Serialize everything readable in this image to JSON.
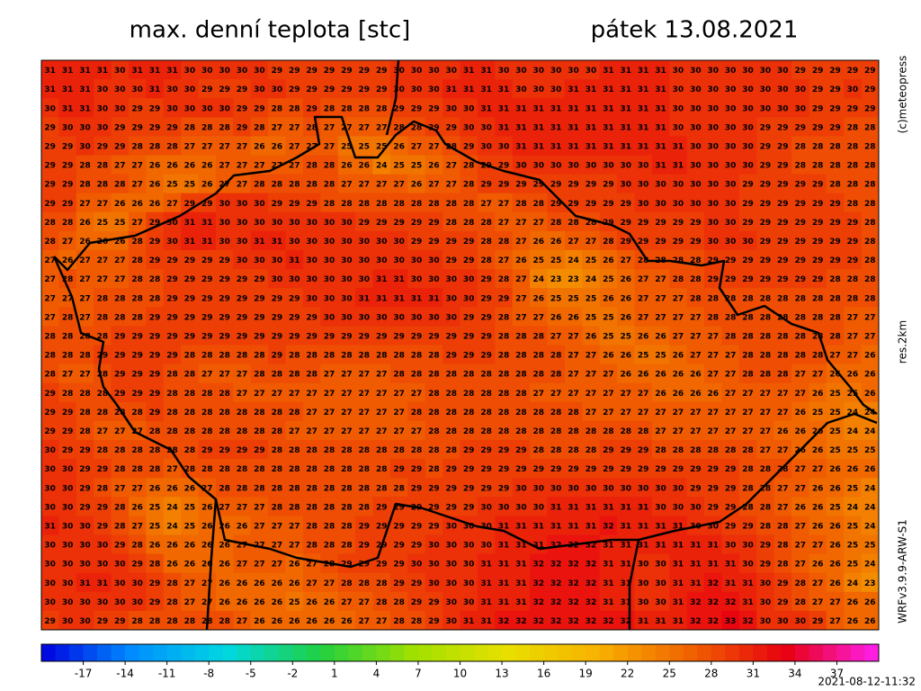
{
  "header": {
    "title": "max. denní teplota [stc]",
    "date": "pátek 13.08.2021"
  },
  "side_labels": [
    "(c)meteopress",
    "res.2km",
    "WRFv3.9.9-ARW-S1"
  ],
  "timestamp": "2021-08-12-11:32",
  "grid": {
    "rows": [
      [
        31,
        31,
        31,
        31,
        30,
        31,
        31,
        31,
        30,
        30,
        30,
        30,
        30,
        29,
        29,
        29,
        29,
        29,
        29,
        29,
        30,
        30,
        30,
        30,
        31,
        31,
        30,
        30,
        30,
        30,
        30,
        30,
        31,
        31,
        31,
        31,
        30,
        30,
        30,
        30,
        30,
        30,
        30,
        29,
        29,
        29,
        29,
        29
      ],
      [
        31,
        31,
        31,
        30,
        30,
        30,
        31,
        30,
        30,
        29,
        29,
        29,
        30,
        30,
        29,
        29,
        29,
        29,
        29,
        29,
        30,
        30,
        30,
        31,
        31,
        31,
        31,
        30,
        30,
        30,
        31,
        31,
        31,
        31,
        31,
        31,
        30,
        30,
        30,
        30,
        30,
        30,
        30,
        30,
        29,
        29,
        30,
        29
      ],
      [
        30,
        31,
        31,
        30,
        30,
        29,
        29,
        30,
        30,
        30,
        30,
        29,
        29,
        28,
        28,
        29,
        28,
        28,
        28,
        28,
        29,
        29,
        29,
        30,
        30,
        31,
        31,
        31,
        31,
        31,
        31,
        31,
        31,
        31,
        31,
        31,
        30,
        30,
        30,
        30,
        30,
        30,
        30,
        30,
        29,
        29,
        29,
        29
      ],
      [
        29,
        30,
        30,
        30,
        29,
        29,
        29,
        29,
        28,
        28,
        28,
        29,
        28,
        27,
        27,
        28,
        27,
        27,
        27,
        27,
        28,
        28,
        29,
        29,
        30,
        30,
        31,
        31,
        31,
        31,
        31,
        31,
        31,
        31,
        31,
        31,
        30,
        30,
        30,
        30,
        30,
        29,
        29,
        29,
        29,
        29,
        28,
        28
      ],
      [
        29,
        29,
        30,
        29,
        29,
        28,
        28,
        28,
        27,
        27,
        27,
        27,
        26,
        26,
        27,
        27,
        27,
        25,
        25,
        25,
        26,
        27,
        27,
        28,
        29,
        30,
        30,
        31,
        31,
        31,
        31,
        31,
        31,
        31,
        31,
        31,
        31,
        30,
        30,
        30,
        30,
        29,
        29,
        28,
        28,
        28,
        28,
        28
      ],
      [
        29,
        29,
        28,
        28,
        27,
        27,
        26,
        26,
        26,
        26,
        27,
        27,
        27,
        27,
        27,
        28,
        28,
        26,
        26,
        24,
        25,
        25,
        26,
        27,
        28,
        29,
        29,
        30,
        30,
        30,
        30,
        30,
        30,
        30,
        30,
        31,
        31,
        30,
        30,
        30,
        30,
        29,
        29,
        28,
        28,
        28,
        28,
        28
      ],
      [
        29,
        29,
        28,
        28,
        28,
        27,
        26,
        25,
        25,
        26,
        27,
        27,
        28,
        28,
        28,
        28,
        28,
        27,
        27,
        27,
        27,
        26,
        27,
        27,
        28,
        29,
        29,
        29,
        29,
        29,
        29,
        29,
        29,
        30,
        30,
        30,
        30,
        30,
        30,
        30,
        29,
        29,
        29,
        29,
        29,
        28,
        28,
        28
      ],
      [
        29,
        29,
        27,
        27,
        26,
        26,
        26,
        27,
        29,
        29,
        30,
        30,
        30,
        29,
        29,
        29,
        28,
        28,
        28,
        28,
        28,
        28,
        28,
        28,
        28,
        27,
        27,
        28,
        28,
        29,
        29,
        29,
        29,
        29,
        30,
        30,
        30,
        30,
        30,
        30,
        29,
        29,
        29,
        29,
        29,
        29,
        28,
        28
      ],
      [
        28,
        28,
        26,
        25,
        25,
        27,
        29,
        30,
        31,
        31,
        30,
        30,
        30,
        30,
        30,
        30,
        30,
        30,
        29,
        29,
        29,
        29,
        29,
        28,
        28,
        28,
        27,
        27,
        27,
        28,
        28,
        28,
        29,
        29,
        29,
        29,
        29,
        29,
        30,
        30,
        29,
        29,
        29,
        29,
        29,
        29,
        29,
        28
      ],
      [
        28,
        27,
        26,
        26,
        26,
        28,
        29,
        30,
        31,
        31,
        30,
        30,
        31,
        31,
        30,
        30,
        30,
        30,
        30,
        30,
        30,
        29,
        29,
        29,
        29,
        28,
        28,
        27,
        26,
        26,
        27,
        27,
        28,
        29,
        29,
        29,
        29,
        29,
        30,
        30,
        30,
        29,
        29,
        29,
        29,
        29,
        29,
        28
      ],
      [
        27,
        26,
        27,
        27,
        27,
        28,
        29,
        29,
        29,
        29,
        29,
        30,
        30,
        30,
        31,
        30,
        30,
        30,
        30,
        30,
        30,
        30,
        30,
        29,
        29,
        28,
        27,
        26,
        25,
        25,
        24,
        25,
        26,
        27,
        28,
        28,
        28,
        28,
        29,
        29,
        29,
        29,
        29,
        29,
        29,
        29,
        29,
        28
      ],
      [
        27,
        28,
        27,
        27,
        27,
        28,
        28,
        29,
        29,
        29,
        29,
        29,
        29,
        30,
        30,
        30,
        30,
        30,
        30,
        31,
        31,
        30,
        30,
        30,
        30,
        29,
        28,
        27,
        24,
        23,
        23,
        24,
        25,
        26,
        27,
        27,
        28,
        28,
        29,
        29,
        29,
        29,
        29,
        29,
        29,
        28,
        28,
        28
      ],
      [
        27,
        27,
        27,
        28,
        28,
        28,
        28,
        29,
        29,
        29,
        29,
        29,
        29,
        29,
        29,
        30,
        30,
        30,
        31,
        31,
        31,
        31,
        31,
        30,
        30,
        29,
        29,
        27,
        26,
        25,
        25,
        25,
        26,
        26,
        27,
        27,
        27,
        28,
        28,
        28,
        28,
        28,
        28,
        28,
        28,
        28,
        28,
        28
      ],
      [
        27,
        28,
        27,
        28,
        28,
        28,
        29,
        29,
        29,
        29,
        29,
        29,
        29,
        29,
        29,
        29,
        30,
        30,
        30,
        30,
        30,
        30,
        30,
        30,
        29,
        29,
        28,
        27,
        27,
        26,
        26,
        25,
        25,
        26,
        27,
        27,
        27,
        27,
        28,
        28,
        28,
        28,
        28,
        28,
        28,
        28,
        27,
        27
      ],
      [
        28,
        28,
        28,
        28,
        29,
        29,
        29,
        29,
        29,
        29,
        29,
        29,
        29,
        29,
        29,
        29,
        29,
        29,
        29,
        29,
        29,
        29,
        29,
        29,
        29,
        29,
        28,
        28,
        28,
        27,
        27,
        26,
        25,
        25,
        26,
        26,
        27,
        27,
        27,
        28,
        28,
        28,
        28,
        28,
        28,
        28,
        27,
        27
      ],
      [
        28,
        28,
        28,
        29,
        29,
        29,
        29,
        29,
        28,
        28,
        28,
        28,
        28,
        29,
        28,
        28,
        28,
        28,
        28,
        28,
        28,
        28,
        28,
        29,
        29,
        29,
        28,
        28,
        28,
        28,
        27,
        27,
        26,
        26,
        25,
        25,
        26,
        27,
        27,
        27,
        28,
        28,
        28,
        28,
        28,
        27,
        27,
        26
      ],
      [
        28,
        27,
        27,
        28,
        29,
        29,
        29,
        28,
        28,
        27,
        27,
        27,
        28,
        28,
        28,
        28,
        27,
        27,
        27,
        27,
        28,
        28,
        28,
        28,
        28,
        28,
        28,
        28,
        28,
        28,
        27,
        27,
        27,
        26,
        26,
        26,
        26,
        26,
        27,
        27,
        28,
        28,
        28,
        27,
        27,
        26,
        26,
        26
      ],
      [
        29,
        28,
        28,
        28,
        29,
        29,
        29,
        28,
        28,
        28,
        28,
        27,
        27,
        27,
        27,
        27,
        27,
        27,
        27,
        27,
        27,
        27,
        28,
        28,
        28,
        28,
        28,
        28,
        27,
        27,
        27,
        27,
        27,
        27,
        27,
        26,
        26,
        26,
        26,
        27,
        27,
        27,
        27,
        27,
        26,
        25,
        25,
        26
      ],
      [
        29,
        29,
        28,
        28,
        28,
        28,
        29,
        28,
        28,
        28,
        28,
        28,
        28,
        28,
        28,
        27,
        27,
        27,
        27,
        27,
        27,
        28,
        28,
        28,
        28,
        28,
        28,
        28,
        28,
        28,
        28,
        27,
        27,
        27,
        27,
        27,
        27,
        27,
        27,
        27,
        27,
        27,
        27,
        26,
        25,
        25,
        24,
        24
      ],
      [
        29,
        29,
        28,
        27,
        27,
        27,
        28,
        28,
        28,
        28,
        28,
        28,
        28,
        28,
        27,
        27,
        27,
        27,
        27,
        27,
        27,
        27,
        28,
        28,
        28,
        28,
        28,
        28,
        28,
        28,
        28,
        28,
        28,
        28,
        28,
        27,
        27,
        27,
        27,
        27,
        27,
        27,
        26,
        26,
        26,
        25,
        24,
        24
      ],
      [
        30,
        29,
        29,
        28,
        28,
        28,
        28,
        28,
        28,
        29,
        29,
        29,
        29,
        28,
        28,
        28,
        28,
        28,
        28,
        28,
        28,
        28,
        28,
        28,
        29,
        29,
        29,
        29,
        28,
        28,
        28,
        28,
        29,
        29,
        29,
        28,
        28,
        28,
        28,
        28,
        28,
        27,
        27,
        26,
        26,
        25,
        25,
        25
      ],
      [
        30,
        30,
        29,
        29,
        28,
        28,
        28,
        27,
        28,
        28,
        28,
        28,
        28,
        28,
        28,
        28,
        28,
        28,
        28,
        28,
        29,
        29,
        28,
        29,
        29,
        29,
        29,
        29,
        29,
        29,
        29,
        29,
        29,
        29,
        29,
        29,
        29,
        29,
        29,
        29,
        28,
        28,
        28,
        27,
        27,
        26,
        26,
        26
      ],
      [
        30,
        30,
        29,
        28,
        27,
        27,
        26,
        26,
        26,
        27,
        28,
        28,
        28,
        28,
        28,
        28,
        28,
        28,
        28,
        28,
        28,
        29,
        29,
        29,
        29,
        29,
        29,
        30,
        30,
        30,
        30,
        30,
        30,
        30,
        30,
        30,
        30,
        29,
        29,
        29,
        28,
        28,
        27,
        27,
        26,
        26,
        25,
        24
      ],
      [
        30,
        30,
        29,
        29,
        28,
        26,
        25,
        24,
        25,
        26,
        27,
        27,
        27,
        28,
        28,
        28,
        28,
        28,
        28,
        29,
        29,
        29,
        29,
        29,
        29,
        30,
        30,
        30,
        30,
        31,
        31,
        31,
        31,
        31,
        31,
        30,
        30,
        30,
        29,
        29,
        28,
        28,
        27,
        26,
        26,
        25,
        24,
        24
      ],
      [
        31,
        30,
        30,
        29,
        28,
        27,
        25,
        24,
        25,
        26,
        26,
        26,
        27,
        27,
        27,
        28,
        28,
        28,
        29,
        29,
        29,
        29,
        29,
        30,
        30,
        30,
        31,
        31,
        31,
        31,
        31,
        31,
        32,
        31,
        31,
        31,
        31,
        30,
        30,
        29,
        29,
        28,
        28,
        27,
        26,
        26,
        25,
        24
      ],
      [
        30,
        30,
        30,
        30,
        29,
        28,
        26,
        26,
        26,
        26,
        26,
        27,
        27,
        27,
        27,
        28,
        28,
        28,
        29,
        29,
        29,
        29,
        30,
        30,
        30,
        30,
        31,
        31,
        31,
        32,
        32,
        32,
        31,
        31,
        31,
        31,
        31,
        31,
        31,
        30,
        30,
        29,
        28,
        27,
        27,
        26,
        25,
        25
      ],
      [
        30,
        30,
        30,
        30,
        30,
        29,
        28,
        26,
        26,
        26,
        26,
        27,
        27,
        27,
        26,
        27,
        28,
        29,
        29,
        29,
        29,
        30,
        30,
        30,
        30,
        31,
        31,
        31,
        32,
        32,
        32,
        32,
        31,
        31,
        30,
        30,
        31,
        31,
        31,
        31,
        30,
        29,
        28,
        27,
        26,
        26,
        25,
        24
      ],
      [
        30,
        30,
        31,
        31,
        30,
        30,
        29,
        28,
        27,
        27,
        26,
        26,
        26,
        26,
        26,
        27,
        27,
        28,
        28,
        28,
        29,
        29,
        30,
        30,
        30,
        31,
        31,
        31,
        32,
        32,
        32,
        32,
        31,
        31,
        30,
        30,
        31,
        31,
        32,
        31,
        31,
        30,
        29,
        28,
        27,
        26,
        24,
        23
      ],
      [
        30,
        30,
        30,
        30,
        30,
        30,
        29,
        28,
        27,
        27,
        26,
        26,
        26,
        26,
        25,
        26,
        26,
        27,
        27,
        28,
        28,
        29,
        29,
        30,
        30,
        31,
        31,
        31,
        32,
        32,
        32,
        32,
        31,
        31,
        30,
        30,
        31,
        32,
        32,
        32,
        31,
        30,
        29,
        28,
        27,
        27,
        26,
        26
      ],
      [
        29,
        30,
        30,
        29,
        29,
        28,
        28,
        28,
        28,
        28,
        28,
        27,
        26,
        26,
        26,
        26,
        26,
        26,
        27,
        27,
        28,
        28,
        29,
        30,
        31,
        31,
        32,
        32,
        32,
        32,
        32,
        32,
        32,
        32,
        31,
        31,
        31,
        32,
        32,
        33,
        32,
        30,
        30,
        30,
        29,
        27,
        26,
        26
      ]
    ]
  },
  "colorbar": {
    "range": [
      -20,
      40
    ],
    "ticks": [
      -17,
      -14,
      -11,
      -8,
      -5,
      -2,
      1,
      4,
      7,
      10,
      13,
      16,
      19,
      22,
      25,
      28,
      31,
      34,
      37
    ],
    "colors": [
      "#0000e0",
      "#0090ff",
      "#00d8e0",
      "#20d040",
      "#a0e000",
      "#e8e000",
      "#f8b000",
      "#f06000",
      "#e80010",
      "#ff20f0"
    ]
  }
}
